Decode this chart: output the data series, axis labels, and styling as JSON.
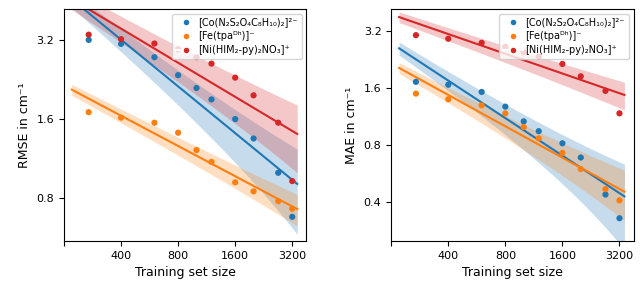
{
  "x_ticks": [
    200,
    400,
    800,
    1600,
    3200
  ],
  "x_tick_labels": [
    "",
    "400",
    "800",
    "1600",
    "3200"
  ],
  "rmse": {
    "blue": {
      "x": [
        270,
        400,
        600,
        800,
        1000,
        1200,
        1600,
        2000,
        2700,
        3200
      ],
      "y": [
        3.2,
        3.09,
        2.75,
        2.35,
        2.1,
        1.9,
        1.6,
        1.35,
        1.0,
        0.68
      ]
    },
    "orange": {
      "x": [
        270,
        400,
        600,
        800,
        1000,
        1200,
        1600,
        2000,
        2700,
        3200
      ],
      "y": [
        1.7,
        1.62,
        1.55,
        1.42,
        1.22,
        1.1,
        0.92,
        0.85,
        0.78,
        0.73
      ]
    },
    "red": {
      "x": [
        270,
        400,
        600,
        800,
        1000,
        1200,
        1600,
        2000,
        2700,
        3200
      ],
      "y": [
        3.35,
        3.22,
        3.1,
        2.95,
        2.75,
        2.6,
        2.3,
        1.97,
        1.55,
        0.93
      ]
    }
  },
  "mae": {
    "blue": {
      "x": [
        270,
        400,
        600,
        800,
        1000,
        1200,
        1600,
        2000,
        2700,
        3200
      ],
      "y": [
        1.73,
        1.67,
        1.53,
        1.28,
        1.07,
        0.95,
        0.82,
        0.69,
        0.44,
        0.33
      ]
    },
    "orange": {
      "x": [
        270,
        400,
        600,
        800,
        1000,
        1200,
        1600,
        2000,
        2700,
        3200
      ],
      "y": [
        1.5,
        1.4,
        1.3,
        1.18,
        1.0,
        0.87,
        0.73,
        0.6,
        0.47,
        0.41
      ]
    },
    "red": {
      "x": [
        270,
        400,
        600,
        800,
        1000,
        1200,
        1600,
        2000,
        2700,
        3200
      ],
      "y": [
        3.05,
        2.92,
        2.78,
        2.65,
        2.48,
        2.35,
        2.15,
        1.85,
        1.55,
        1.18
      ]
    }
  },
  "colors": {
    "blue": "#1f77b4",
    "orange": "#ff7f0e",
    "red": "#d62728"
  },
  "legend_labels": [
    "[Co(N₂S₂O₄C₈H₁₀)₂]²⁻",
    "[Fe(tpaᴰʰ)]⁻",
    "[Ni(HIM₂-py)₂NO₃]⁺"
  ],
  "rmse_ylabel": "RMSE in cm⁻¹",
  "mae_ylabel": "MAE in cm⁻¹",
  "xlabel": "Training set size",
  "rmse_yticks": [
    0.8,
    1.6,
    3.2
  ],
  "rmse_ytick_labels": [
    "0.8",
    "1.6",
    "3.2"
  ],
  "mae_yticks": [
    0.4,
    0.8,
    1.6,
    3.2
  ],
  "mae_ytick_labels": [
    "0.4",
    "0.8",
    "1.6",
    "3.2"
  ]
}
